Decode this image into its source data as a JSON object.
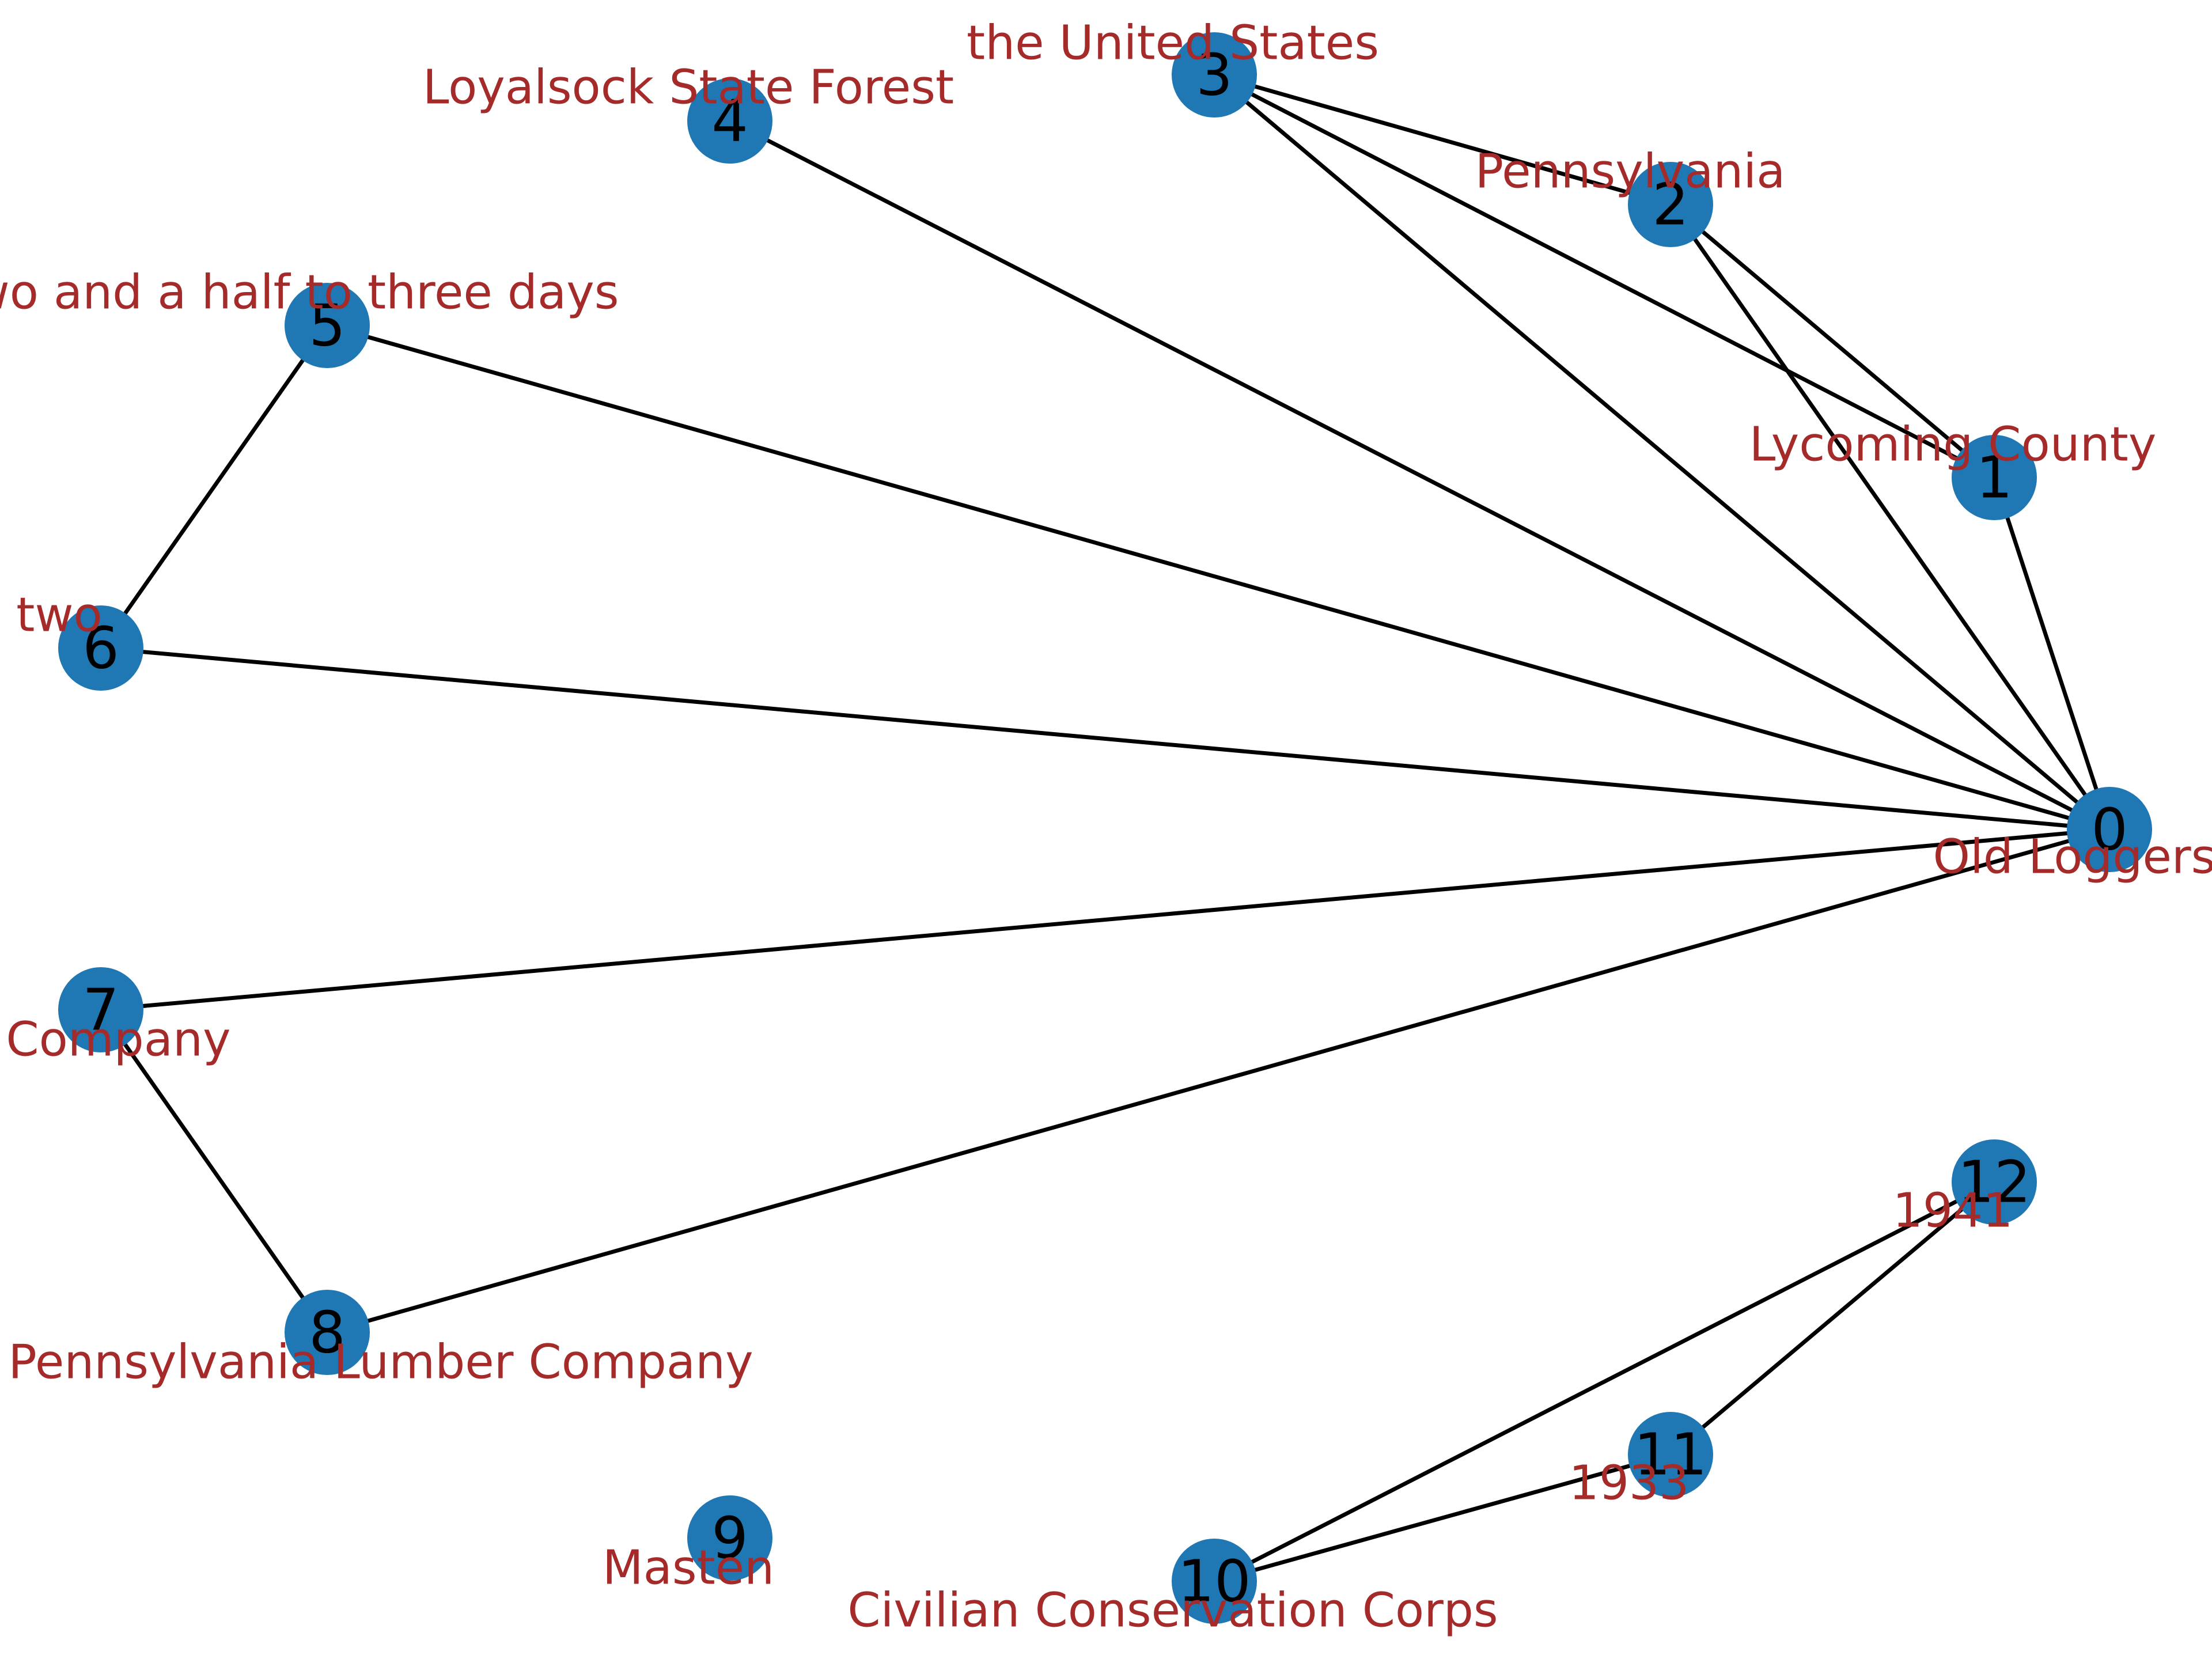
{
  "colors": {
    "node_fill": "#1f77b4",
    "edge": "#000000",
    "label": "#a52a2a",
    "node_id": "#000000"
  },
  "graph": {
    "nodes": [
      {
        "id": "0",
        "label": "Old Loggers Pa"
      },
      {
        "id": "1",
        "label": "Lycoming County"
      },
      {
        "id": "2",
        "label": "Pennsylvania"
      },
      {
        "id": "3",
        "label": "the United States"
      },
      {
        "id": "4",
        "label": "Loyalsock State Forest"
      },
      {
        "id": "5",
        "label": "two and a half to three days"
      },
      {
        "id": "6",
        "label": "two"
      },
      {
        "id": "7",
        "label": "ning Company"
      },
      {
        "id": "8",
        "label": "Pennsylvania Lumber Company"
      },
      {
        "id": "9",
        "label": "Masten"
      },
      {
        "id": "10",
        "label": "Civilian Conservation Corps"
      },
      {
        "id": "11",
        "label": "1933"
      },
      {
        "id": "12",
        "label": "1941"
      }
    ],
    "edges": [
      [
        "0",
        "1"
      ],
      [
        "0",
        "2"
      ],
      [
        "0",
        "3"
      ],
      [
        "0",
        "4"
      ],
      [
        "0",
        "5"
      ],
      [
        "0",
        "6"
      ],
      [
        "0",
        "7"
      ],
      [
        "0",
        "8"
      ],
      [
        "1",
        "2"
      ],
      [
        "1",
        "3"
      ],
      [
        "2",
        "3"
      ],
      [
        "5",
        "6"
      ],
      [
        "7",
        "8"
      ],
      [
        "10",
        "11"
      ],
      [
        "10",
        "12"
      ],
      [
        "11",
        "12"
      ]
    ]
  }
}
